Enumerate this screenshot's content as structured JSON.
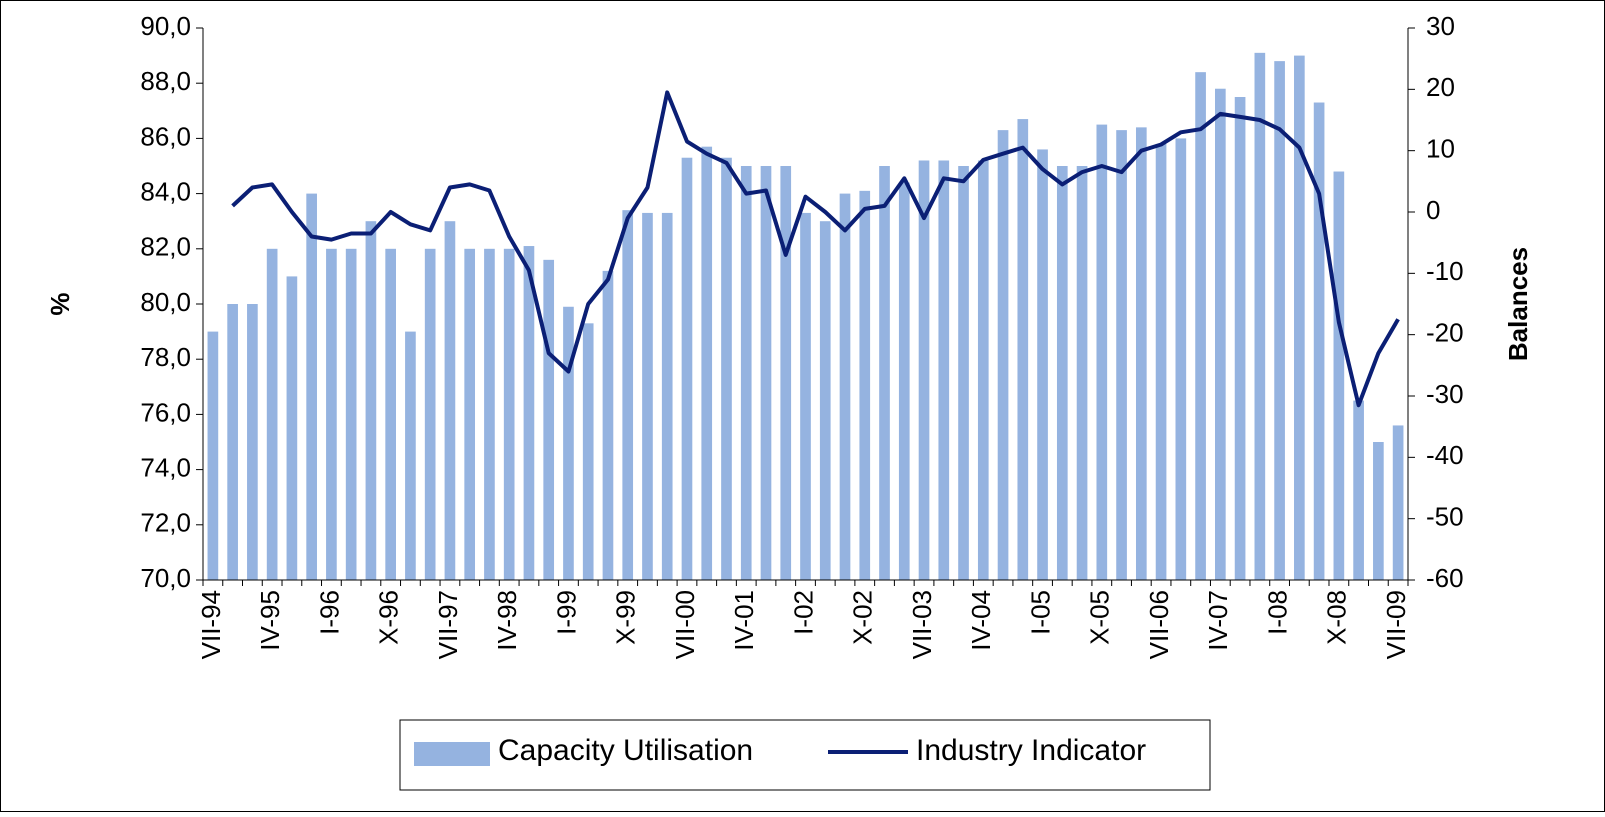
{
  "chart_data": {
    "type": "bar-line",
    "categories": [
      "VII-94",
      null,
      null,
      "IV-95",
      null,
      null,
      "I-96",
      null,
      null,
      "X-96",
      null,
      null,
      "VII-97",
      null,
      null,
      "IV-98",
      null,
      null,
      "I-99",
      null,
      null,
      "X-99",
      null,
      null,
      "VII-00",
      null,
      null,
      "IV-01",
      null,
      null,
      "I-02",
      null,
      null,
      "X-02",
      null,
      null,
      "VII-03",
      null,
      null,
      "IV-04",
      null,
      null,
      "I-05",
      null,
      null,
      "X-05",
      null,
      null,
      "VII-06",
      null,
      null,
      "IV-07",
      null,
      null,
      "I-08",
      null,
      null,
      "X-08",
      null,
      null,
      "VII-09"
    ],
    "series": [
      {
        "name": "Capacity Utilisation",
        "type": "bar",
        "color": "#95b3e0",
        "values": [
          79.0,
          80.0,
          80.0,
          82.0,
          81.0,
          84.0,
          82.0,
          82.0,
          83.0,
          82.0,
          79.0,
          82.0,
          83.0,
          82.0,
          82.0,
          82.0,
          82.1,
          81.6,
          79.9,
          79.3,
          81.2,
          83.4,
          83.3,
          83.3,
          85.3,
          85.7,
          85.3,
          85.0,
          85.0,
          85.0,
          83.3,
          83.0,
          84.0,
          84.1,
          85.0,
          84.4,
          85.2,
          85.2,
          85.0,
          85.2,
          86.3,
          86.7,
          85.6,
          85.0,
          85.0,
          86.5,
          86.3,
          86.4,
          85.8,
          86.0,
          88.4,
          87.8,
          87.5,
          89.1,
          88.8,
          89.0,
          87.3,
          84.8,
          76.5,
          75.0,
          75.6
        ]
      },
      {
        "name": "Industry Indicator",
        "type": "line",
        "axis": "y2",
        "color": "#0b1f75",
        "values": [
          null,
          1,
          4,
          4.5,
          0,
          -4,
          -4.5,
          -3.5,
          -3.5,
          0,
          -2,
          -3,
          4,
          4.5,
          3.5,
          -4,
          -9.5,
          -23,
          -26,
          -15,
          -11,
          -1,
          4,
          19.5,
          11.5,
          9.5,
          8,
          3,
          3.5,
          -7,
          2.5,
          0,
          -3,
          0.5,
          1,
          5.5,
          -1,
          5.5,
          5,
          8.5,
          9.5,
          10.5,
          7,
          4.5,
          6.5,
          7.5,
          6.5,
          10,
          11,
          13,
          13.5,
          16,
          15.5,
          15,
          13.5,
          10.5,
          3,
          -18,
          -31.5,
          -23,
          -17.5
        ]
      }
    ],
    "y_label": "%",
    "y2_label": "Balances",
    "ylim": [
      70,
      90
    ],
    "yticks": [
      {
        "value": 70,
        "label": "70,0"
      },
      {
        "value": 72,
        "label": "72,0"
      },
      {
        "value": 74,
        "label": "74,0"
      },
      {
        "value": 76,
        "label": "76,0"
      },
      {
        "value": 78,
        "label": "78,0"
      },
      {
        "value": 80,
        "label": "80,0"
      },
      {
        "value": 82,
        "label": "82,0"
      },
      {
        "value": 84,
        "label": "84,0"
      },
      {
        "value": 86,
        "label": "86,0"
      },
      {
        "value": 88,
        "label": "88,0"
      },
      {
        "value": 90,
        "label": "90,0"
      }
    ],
    "y2lim": [
      -60,
      30
    ],
    "y2ticks": [
      -60,
      -50,
      -40,
      -30,
      -20,
      -10,
      0,
      10,
      20,
      30
    ],
    "legend": "bottom"
  }
}
